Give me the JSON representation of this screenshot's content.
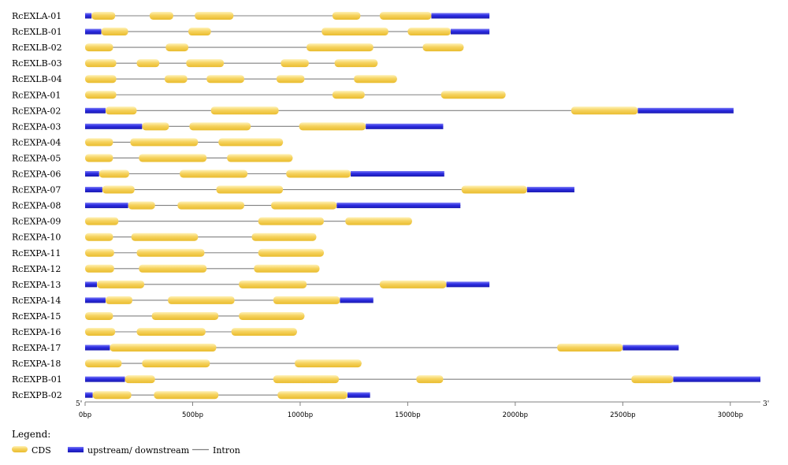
{
  "figure": {
    "units": "bp",
    "left_end_label": "5'",
    "right_end_label": "3'",
    "axis_ticks": [
      {
        "value": 0,
        "label": "0bp"
      },
      {
        "value": 500,
        "label": "500bp"
      },
      {
        "value": 1000,
        "label": "1000bp"
      },
      {
        "value": 1500,
        "label": "1500bp"
      },
      {
        "value": 2000,
        "label": "2000bp"
      },
      {
        "value": 2500,
        "label": "2500bp"
      },
      {
        "value": 3000,
        "label": "3000bp"
      }
    ],
    "axis_max": 3140,
    "colors": {
      "cds": "#F5D25E",
      "utr": "#2B2BE0",
      "intron": "#808080"
    }
  },
  "legend": {
    "title": "Legend:",
    "cds_label": "CDS",
    "utr_label": "upstream/ downstream",
    "intron_label": "Intron"
  },
  "genes": [
    {
      "name": "RcEXLA-01",
      "length": 1880,
      "features": [
        {
          "t": "utr",
          "s": 0,
          "e": 30
        },
        {
          "t": "cds",
          "s": 30,
          "e": 140
        },
        {
          "t": "cds",
          "s": 300,
          "e": 410
        },
        {
          "t": "cds",
          "s": 510,
          "e": 690
        },
        {
          "t": "cds",
          "s": 1150,
          "e": 1280
        },
        {
          "t": "cds",
          "s": 1370,
          "e": 1610
        },
        {
          "t": "utr",
          "s": 1610,
          "e": 1880
        }
      ]
    },
    {
      "name": "RcEXLB-01",
      "length": 1880,
      "features": [
        {
          "t": "utr",
          "s": 0,
          "e": 75
        },
        {
          "t": "cds",
          "s": 75,
          "e": 200
        },
        {
          "t": "cds",
          "s": 480,
          "e": 585
        },
        {
          "t": "cds",
          "s": 1100,
          "e": 1410
        },
        {
          "t": "cds",
          "s": 1500,
          "e": 1700
        },
        {
          "t": "utr",
          "s": 1700,
          "e": 1880
        }
      ]
    },
    {
      "name": "RcEXLB-02",
      "length": 1760,
      "features": [
        {
          "t": "cds",
          "s": 0,
          "e": 130
        },
        {
          "t": "cds",
          "s": 375,
          "e": 480
        },
        {
          "t": "cds",
          "s": 1030,
          "e": 1340
        },
        {
          "t": "cds",
          "s": 1570,
          "e": 1760
        }
      ]
    },
    {
      "name": "RcEXLB-03",
      "length": 1360,
      "features": [
        {
          "t": "cds",
          "s": 0,
          "e": 145
        },
        {
          "t": "cds",
          "s": 240,
          "e": 345
        },
        {
          "t": "cds",
          "s": 470,
          "e": 645
        },
        {
          "t": "cds",
          "s": 910,
          "e": 1040
        },
        {
          "t": "cds",
          "s": 1160,
          "e": 1360
        }
      ]
    },
    {
      "name": "RcEXLB-04",
      "length": 1450,
      "features": [
        {
          "t": "cds",
          "s": 0,
          "e": 145
        },
        {
          "t": "cds",
          "s": 370,
          "e": 475
        },
        {
          "t": "cds",
          "s": 565,
          "e": 740
        },
        {
          "t": "cds",
          "s": 890,
          "e": 1020
        },
        {
          "t": "cds",
          "s": 1250,
          "e": 1450
        }
      ]
    },
    {
      "name": "RcEXPA-01",
      "length": 1955,
      "features": [
        {
          "t": "cds",
          "s": 0,
          "e": 145
        },
        {
          "t": "cds",
          "s": 1150,
          "e": 1300
        },
        {
          "t": "cds",
          "s": 1655,
          "e": 1955
        }
      ]
    },
    {
      "name": "RcEXPA-02",
      "length": 3015,
      "features": [
        {
          "t": "utr",
          "s": 0,
          "e": 95
        },
        {
          "t": "cds",
          "s": 95,
          "e": 240
        },
        {
          "t": "cds",
          "s": 585,
          "e": 900
        },
        {
          "t": "cds",
          "s": 2260,
          "e": 2570
        },
        {
          "t": "utr",
          "s": 2570,
          "e": 3015
        }
      ]
    },
    {
      "name": "RcEXPA-03",
      "length": 1665,
      "features": [
        {
          "t": "utr",
          "s": 0,
          "e": 265
        },
        {
          "t": "cds",
          "s": 265,
          "e": 390
        },
        {
          "t": "cds",
          "s": 485,
          "e": 770
        },
        {
          "t": "cds",
          "s": 995,
          "e": 1305
        },
        {
          "t": "utr",
          "s": 1305,
          "e": 1665
        }
      ]
    },
    {
      "name": "RcEXPA-04",
      "length": 920,
      "features": [
        {
          "t": "cds",
          "s": 0,
          "e": 130
        },
        {
          "t": "cds",
          "s": 210,
          "e": 525
        },
        {
          "t": "cds",
          "s": 620,
          "e": 920
        }
      ]
    },
    {
      "name": "RcEXPA-05",
      "length": 965,
      "features": [
        {
          "t": "cds",
          "s": 0,
          "e": 130
        },
        {
          "t": "cds",
          "s": 250,
          "e": 565
        },
        {
          "t": "cds",
          "s": 660,
          "e": 965
        }
      ]
    },
    {
      "name": "RcEXPA-06",
      "length": 1670,
      "features": [
        {
          "t": "utr",
          "s": 0,
          "e": 65
        },
        {
          "t": "cds",
          "s": 65,
          "e": 205
        },
        {
          "t": "cds",
          "s": 440,
          "e": 755
        },
        {
          "t": "cds",
          "s": 935,
          "e": 1235
        },
        {
          "t": "utr",
          "s": 1235,
          "e": 1670
        }
      ]
    },
    {
      "name": "RcEXPA-07",
      "length": 2275,
      "features": [
        {
          "t": "utr",
          "s": 0,
          "e": 80
        },
        {
          "t": "cds",
          "s": 80,
          "e": 230
        },
        {
          "t": "cds",
          "s": 610,
          "e": 920
        },
        {
          "t": "cds",
          "s": 1750,
          "e": 2055
        },
        {
          "t": "utr",
          "s": 2055,
          "e": 2275
        }
      ]
    },
    {
      "name": "RcEXPA-08",
      "length": 1745,
      "features": [
        {
          "t": "utr",
          "s": 0,
          "e": 200
        },
        {
          "t": "cds",
          "s": 200,
          "e": 325
        },
        {
          "t": "cds",
          "s": 430,
          "e": 740
        },
        {
          "t": "cds",
          "s": 865,
          "e": 1170
        },
        {
          "t": "utr",
          "s": 1170,
          "e": 1745
        }
      ]
    },
    {
      "name": "RcEXPA-09",
      "length": 1520,
      "features": [
        {
          "t": "cds",
          "s": 0,
          "e": 155
        },
        {
          "t": "cds",
          "s": 805,
          "e": 1110
        },
        {
          "t": "cds",
          "s": 1210,
          "e": 1520
        }
      ]
    },
    {
      "name": "RcEXPA-10",
      "length": 1075,
      "features": [
        {
          "t": "cds",
          "s": 0,
          "e": 130
        },
        {
          "t": "cds",
          "s": 215,
          "e": 525
        },
        {
          "t": "cds",
          "s": 775,
          "e": 1075
        }
      ]
    },
    {
      "name": "RcEXPA-11",
      "length": 1110,
      "features": [
        {
          "t": "cds",
          "s": 0,
          "e": 135
        },
        {
          "t": "cds",
          "s": 240,
          "e": 555
        },
        {
          "t": "cds",
          "s": 805,
          "e": 1110
        }
      ]
    },
    {
      "name": "RcEXPA-12",
      "length": 1090,
      "features": [
        {
          "t": "cds",
          "s": 0,
          "e": 135
        },
        {
          "t": "cds",
          "s": 250,
          "e": 565
        },
        {
          "t": "cds",
          "s": 785,
          "e": 1090
        }
      ]
    },
    {
      "name": "RcEXPA-13",
      "length": 1880,
      "features": [
        {
          "t": "utr",
          "s": 0,
          "e": 55
        },
        {
          "t": "cds",
          "s": 55,
          "e": 275
        },
        {
          "t": "cds",
          "s": 715,
          "e": 1030
        },
        {
          "t": "cds",
          "s": 1370,
          "e": 1680
        },
        {
          "t": "utr",
          "s": 1680,
          "e": 1880
        }
      ]
    },
    {
      "name": "RcEXPA-14",
      "length": 1340,
      "features": [
        {
          "t": "utr",
          "s": 0,
          "e": 95
        },
        {
          "t": "cds",
          "s": 95,
          "e": 220
        },
        {
          "t": "cds",
          "s": 385,
          "e": 695
        },
        {
          "t": "cds",
          "s": 875,
          "e": 1185
        },
        {
          "t": "utr",
          "s": 1185,
          "e": 1340
        }
      ]
    },
    {
      "name": "RcEXPA-15",
      "length": 1020,
      "features": [
        {
          "t": "cds",
          "s": 0,
          "e": 130
        },
        {
          "t": "cds",
          "s": 310,
          "e": 620
        },
        {
          "t": "cds",
          "s": 715,
          "e": 1020
        }
      ]
    },
    {
      "name": "RcEXPA-16",
      "length": 985,
      "features": [
        {
          "t": "cds",
          "s": 0,
          "e": 140
        },
        {
          "t": "cds",
          "s": 240,
          "e": 560
        },
        {
          "t": "cds",
          "s": 680,
          "e": 985
        }
      ]
    },
    {
      "name": "RcEXPA-17",
      "length": 2760,
      "features": [
        {
          "t": "utr",
          "s": 0,
          "e": 115
        },
        {
          "t": "cds",
          "s": 115,
          "e": 610
        },
        {
          "t": "cds",
          "s": 2195,
          "e": 2500
        },
        {
          "t": "utr",
          "s": 2500,
          "e": 2760
        }
      ]
    },
    {
      "name": "RcEXPA-18",
      "length": 1285,
      "features": [
        {
          "t": "cds",
          "s": 0,
          "e": 170
        },
        {
          "t": "cds",
          "s": 265,
          "e": 580
        },
        {
          "t": "cds",
          "s": 975,
          "e": 1285
        }
      ]
    },
    {
      "name": "RcEXPB-01",
      "length": 3140,
      "features": [
        {
          "t": "utr",
          "s": 0,
          "e": 185
        },
        {
          "t": "cds",
          "s": 185,
          "e": 325
        },
        {
          "t": "cds",
          "s": 875,
          "e": 1180
        },
        {
          "t": "cds",
          "s": 1540,
          "e": 1665
        },
        {
          "t": "cds",
          "s": 2540,
          "e": 2735
        },
        {
          "t": "utr",
          "s": 2735,
          "e": 3140
        }
      ]
    },
    {
      "name": "RcEXPB-02",
      "length": 1325,
      "features": [
        {
          "t": "utr",
          "s": 0,
          "e": 35
        },
        {
          "t": "cds",
          "s": 35,
          "e": 215
        },
        {
          "t": "cds",
          "s": 320,
          "e": 620
        },
        {
          "t": "cds",
          "s": 895,
          "e": 1220
        },
        {
          "t": "utr",
          "s": 1220,
          "e": 1325
        }
      ]
    }
  ]
}
